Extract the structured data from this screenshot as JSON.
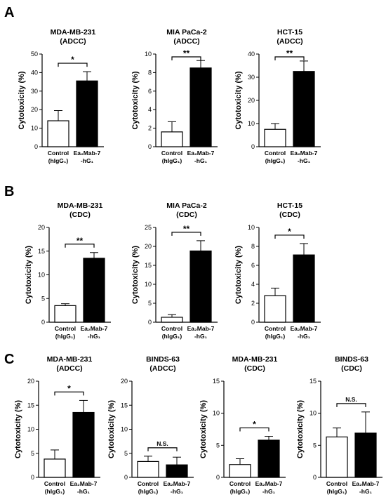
{
  "panel_labels": [
    "A",
    "B",
    "C"
  ],
  "chart_data": [
    {
      "panel": "A",
      "type": "bar",
      "title": [
        "MDA-MB-231",
        "(ADCC)"
      ],
      "ylabel": "Cytotoxicity (%)",
      "categories": [
        [
          "Control",
          "(hIgG₁)"
        ],
        [
          "Ea₂Mab-7",
          "-hG₁"
        ]
      ],
      "values": [
        14,
        35.5
      ],
      "errors": [
        5.5,
        5
      ],
      "fills": [
        "#ffffff",
        "#000000"
      ],
      "ylim": [
        0,
        50
      ],
      "yticks": [
        "0",
        "10",
        "20",
        "30",
        "40",
        "50"
      ],
      "significance": "*"
    },
    {
      "panel": "A",
      "type": "bar",
      "title": [
        "MIA PaCa-2",
        "(ADCC)"
      ],
      "ylabel": "Cytotoxicity (%)",
      "categories": [
        [
          "Control",
          "(hIgG₁)"
        ],
        [
          "Ea₂Mab-7",
          "-hG₁"
        ]
      ],
      "values": [
        1.6,
        8.5
      ],
      "errors": [
        1.1,
        0.8
      ],
      "fills": [
        "#ffffff",
        "#000000"
      ],
      "ylim": [
        0,
        10
      ],
      "yticks": [
        "0",
        "2",
        "4",
        "6",
        "8",
        "10"
      ],
      "significance": "**"
    },
    {
      "panel": "A",
      "type": "bar",
      "title": [
        "HCT-15",
        "(ADCC)"
      ],
      "ylabel": "Cytotoxicity (%)",
      "categories": [
        [
          "Control",
          "(hIgG₁)"
        ],
        [
          "Ea₂Mab-7",
          "-hG₁"
        ]
      ],
      "values": [
        7.5,
        32.5
      ],
      "errors": [
        2.5,
        4.5
      ],
      "fills": [
        "#ffffff",
        "#000000"
      ],
      "ylim": [
        0,
        40
      ],
      "yticks": [
        "0",
        "10",
        "20",
        "30",
        "40"
      ],
      "significance": "**"
    },
    {
      "panel": "B",
      "type": "bar",
      "title": [
        "MDA-MB-231",
        "(CDC)"
      ],
      "ylabel": "Cytotoxicity (%)",
      "categories": [
        [
          "Control",
          "(hIgG₁)"
        ],
        [
          "Ea₂Mab-7",
          "-hG₁"
        ]
      ],
      "values": [
        3.5,
        13.5
      ],
      "errors": [
        0.4,
        1.2
      ],
      "fills": [
        "#ffffff",
        "#000000"
      ],
      "ylim": [
        0,
        20
      ],
      "yticks": [
        "0",
        "5",
        "10",
        "15",
        "20"
      ],
      "significance": "**"
    },
    {
      "panel": "B",
      "type": "bar",
      "title": [
        "MIA PaCa-2",
        "(CDC)"
      ],
      "ylabel": "Cytotoxicity (%)",
      "categories": [
        [
          "Control",
          "(hIgG₁)"
        ],
        [
          "Ea₂Mab-7",
          "-hG₁"
        ]
      ],
      "values": [
        1.3,
        18.8
      ],
      "errors": [
        0.7,
        2.7
      ],
      "fills": [
        "#ffffff",
        "#000000"
      ],
      "ylim": [
        0,
        25
      ],
      "yticks": [
        "0",
        "5",
        "10",
        "15",
        "20",
        "25"
      ],
      "significance": "**"
    },
    {
      "panel": "B",
      "type": "bar",
      "title": [
        "HCT-15",
        "(CDC)"
      ],
      "ylabel": "Cytotoxicity (%)",
      "categories": [
        [
          "Control",
          "(hIgG₁)"
        ],
        [
          "Ea₂Mab-7",
          "-hG₁"
        ]
      ],
      "values": [
        2.8,
        7.1
      ],
      "errors": [
        0.8,
        1.2
      ],
      "fills": [
        "#ffffff",
        "#000000"
      ],
      "ylim": [
        0,
        10
      ],
      "yticks": [
        "0",
        "2",
        "4",
        "6",
        "8",
        "10"
      ],
      "significance": "*"
    },
    {
      "panel": "C",
      "type": "bar",
      "title": [
        "MDA-MB-231",
        "(ADCC)"
      ],
      "ylabel": "Cytotoxicity (%)",
      "categories": [
        [
          "Control",
          "(hIgG₁)"
        ],
        [
          "Ea₂Mab-7",
          "-hG₁"
        ]
      ],
      "values": [
        3.8,
        13.5
      ],
      "errors": [
        1.9,
        2.5
      ],
      "fills": [
        "#ffffff",
        "#000000"
      ],
      "ylim": [
        0,
        20
      ],
      "yticks": [
        "0",
        "5",
        "10",
        "15",
        "20"
      ],
      "significance": "*"
    },
    {
      "panel": "C",
      "type": "bar",
      "title": [
        "BINDS-63",
        "(ADCC)"
      ],
      "ylabel": "Cytotoxicity (%)",
      "categories": [
        [
          "Control",
          "(hIgG₁)"
        ],
        [
          "Ea₂Mab-7",
          "-hG₁"
        ]
      ],
      "values": [
        3.3,
        2.6
      ],
      "errors": [
        1.1,
        1.6
      ],
      "fills": [
        "#ffffff",
        "#000000"
      ],
      "ylim": [
        0,
        20
      ],
      "yticks": [
        "0",
        "5",
        "10",
        "15",
        "20"
      ],
      "significance": "N.S."
    },
    {
      "panel": "C",
      "type": "bar",
      "title": [
        "MDA-MB-231",
        "(CDC)"
      ],
      "ylabel": "Cytotoxicity (%)",
      "categories": [
        [
          "Control",
          "(hIgG₁)"
        ],
        [
          "Ea₂Mab-7",
          "-hG₁"
        ]
      ],
      "values": [
        2,
        5.8
      ],
      "errors": [
        0.9,
        0.6
      ],
      "fills": [
        "#ffffff",
        "#000000"
      ],
      "ylim": [
        0,
        15
      ],
      "yticks": [
        "0",
        "5",
        "10",
        "15"
      ],
      "significance": "*"
    },
    {
      "panel": "C",
      "type": "bar",
      "title": [
        "BINDS-63",
        "(CDC)"
      ],
      "ylabel": "Cytotoxicity (%)",
      "categories": [
        [
          "Control",
          "(hIgG₁)"
        ],
        [
          "Ea₂Mab-7",
          "-hG₁"
        ]
      ],
      "values": [
        6.3,
        6.9
      ],
      "errors": [
        1.4,
        3.3
      ],
      "fills": [
        "#ffffff",
        "#000000"
      ],
      "ylim": [
        0,
        15
      ],
      "yticks": [
        "0",
        "5",
        "10",
        "15"
      ],
      "significance": "N.S."
    }
  ]
}
